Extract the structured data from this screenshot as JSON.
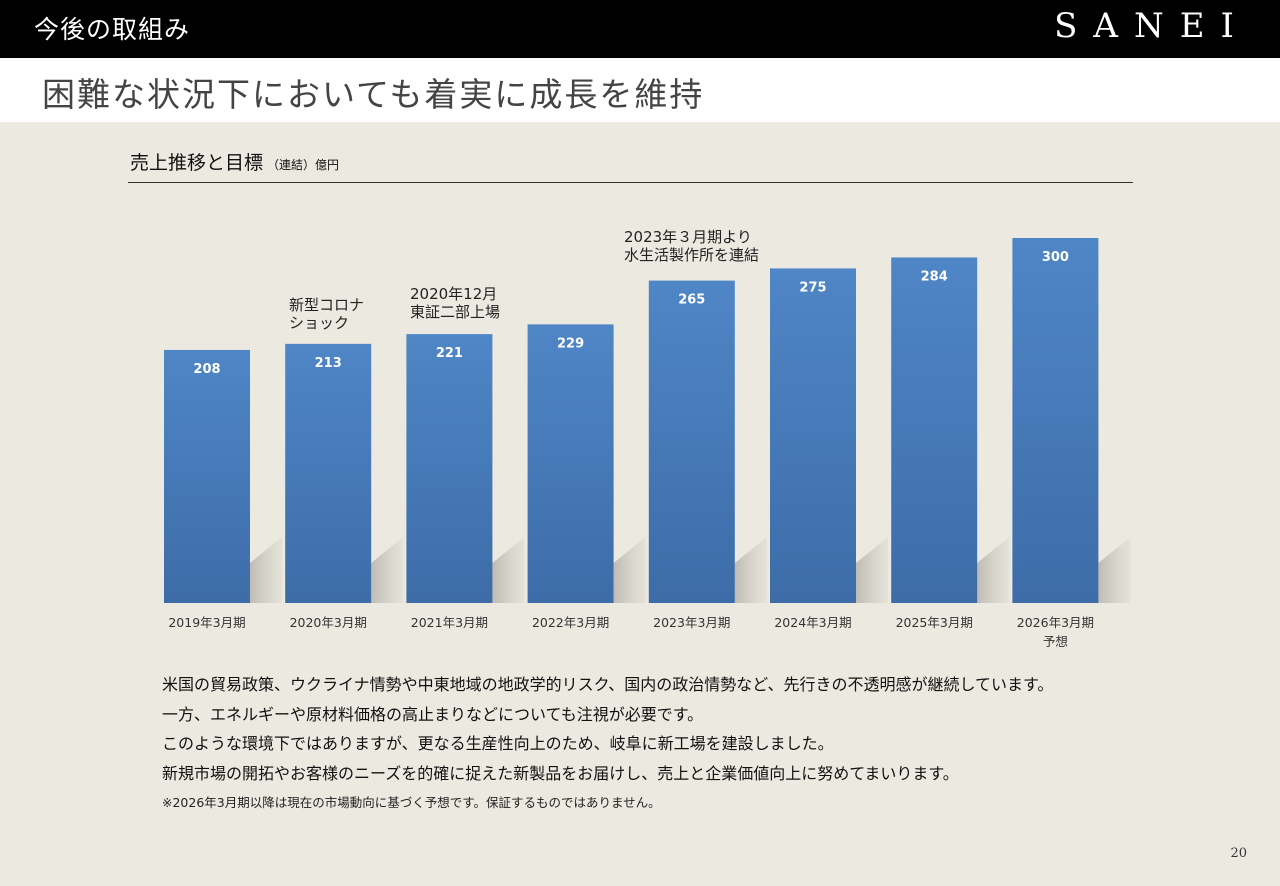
{
  "header": {
    "section": "今後の取組み",
    "logo": "SANEI"
  },
  "headline": "困難な状況下においても着実に成長を維持",
  "chart_title": "売上推移と目標",
  "chart_subtitle": "（連結）億円",
  "chart_data": {
    "type": "bar",
    "title": "売上推移と目標",
    "subtitle": "（連結）億円",
    "categories": [
      "2019年3月期",
      "2020年3月期",
      "2021年3月期",
      "2022年3月期",
      "2023年3月期",
      "2024年3月期",
      "2025年3月期",
      "2026年3月期\n予想"
    ],
    "values": [
      208,
      213,
      221,
      229,
      265,
      275,
      284,
      300
    ],
    "bar_color": "#4a7fbd",
    "bar_color_dark": "#3a6aa6",
    "label_color": "#ffffff",
    "ylim": [
      0,
      300
    ],
    "grid": false,
    "legend": "none",
    "annotations": [
      {
        "category_index": 1,
        "lines": [
          "新型コロナ",
          "ショック"
        ]
      },
      {
        "category_index": 2,
        "lines": [
          "2020年12月",
          "東証二部上場"
        ]
      },
      {
        "category_index": 4,
        "lines": [
          "2023年３月期より",
          "水生活製作所を連結"
        ]
      }
    ]
  },
  "body": {
    "lines": [
      "米国の貿易政策、ウクライナ情勢や中東地域の地政学的リスク、国内の政治情勢など、先行きの不透明感が継続しています。",
      "一方、エネルギーや原材料価格の高止まりなどについても注視が必要です。",
      "このような環境下ではありますが、更なる生産性向上のため、岐阜に新工場を建設しました。",
      "新規市場の開拓やお客様のニーズを的確に捉えた新製品をお届けし、売上と企業価値向上に努めてまいります。"
    ],
    "note": "※2026年3月期以降は現在の市場動向に基づく予想です。保証するものではありません。"
  },
  "page_number": "20"
}
